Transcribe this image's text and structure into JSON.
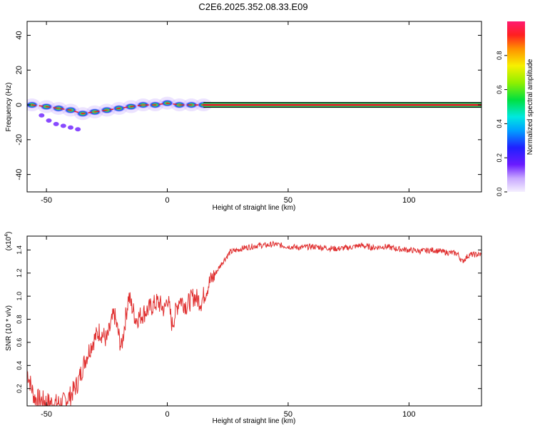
{
  "title": "C2E6.2025.352.08.33.E09",
  "colors": {
    "snr_line": "#e03030",
    "band_core": "#e8202a",
    "band_mid": "#10d060",
    "band_outer": "#000000"
  },
  "chart_data": [
    {
      "type": "heatmap",
      "name": "spectrogram",
      "xlabel": "Height of straight line (km)",
      "ylabel": "Frequency (Hz)",
      "xlim": [
        -58,
        130
      ],
      "ylim": [
        -50,
        48
      ],
      "xticks": [
        -50,
        0,
        50,
        100
      ],
      "yticks": [
        -40,
        -20,
        0,
        20,
        40
      ],
      "xtick_labels": [
        "-50",
        "0",
        "50",
        "100"
      ],
      "ytick_labels": [
        "-40",
        "-20",
        "0",
        "20",
        "40"
      ],
      "ridge": [
        {
          "x": -56,
          "f": 0
        },
        {
          "x": -50,
          "f": -1
        },
        {
          "x": -45,
          "f": -2
        },
        {
          "x": -40,
          "f": -3
        },
        {
          "x": -35,
          "f": -5
        },
        {
          "x": -30,
          "f": -4
        },
        {
          "x": -25,
          "f": -3
        },
        {
          "x": -20,
          "f": -2
        },
        {
          "x": -15,
          "f": -1
        },
        {
          "x": -10,
          "f": 0
        },
        {
          "x": -5,
          "f": 0
        },
        {
          "x": 0,
          "f": 1
        },
        {
          "x": 5,
          "f": 0
        },
        {
          "x": 10,
          "f": 0
        },
        {
          "x": 15,
          "f": 0
        }
      ],
      "tail": [
        {
          "x": -52,
          "f": -6
        },
        {
          "x": -49,
          "f": -9
        },
        {
          "x": -46,
          "f": -11
        },
        {
          "x": -43,
          "f": -12
        },
        {
          "x": -40,
          "f": -13
        },
        {
          "x": -37,
          "f": -14
        }
      ],
      "band": {
        "x_start": 15,
        "x_end": 130,
        "f": 0
      }
    },
    {
      "type": "colorbar",
      "name": "colorbar",
      "label": "Normalized spectral amplitude",
      "range": [
        0.0,
        1.0
      ],
      "ticks": [
        0.0,
        0.2,
        0.4,
        0.6,
        0.8
      ],
      "tick_labels": [
        "0.0",
        "0.2",
        "0.4",
        "0.6",
        "0.8"
      ]
    },
    {
      "type": "line",
      "name": "snr",
      "xlabel": "Height of straight line (km)",
      "ylabel": "SNR (10 * v/v)",
      "y_exponent_label": "(x10",
      "y_exponent_power": "4",
      "y_exponent_close": ")",
      "xlim": [
        -58,
        130
      ],
      "ylim": [
        0.05,
        1.52
      ],
      "xticks": [
        -50,
        0,
        50,
        100
      ],
      "xtick_labels": [
        "-50",
        "0",
        "50",
        "100"
      ],
      "yticks": [
        0.2,
        0.4,
        0.6,
        0.8,
        1.0,
        1.2,
        1.4
      ],
      "ytick_labels": [
        "0.2",
        "0.4",
        "0.6",
        "0.8",
        "1.0",
        "1.2",
        "1.4"
      ],
      "x": [
        -58,
        -55,
        -52,
        -49,
        -46,
        -43,
        -40,
        -37,
        -34,
        -31,
        -28,
        -25,
        -22,
        -19,
        -16,
        -13,
        -10,
        -7,
        -4,
        -1,
        0,
        2,
        5,
        8,
        11,
        14,
        17,
        20,
        23,
        26,
        29,
        32,
        35,
        38,
        41,
        44,
        47,
        50,
        55,
        60,
        65,
        70,
        75,
        80,
        85,
        90,
        95,
        100,
        105,
        110,
        115,
        120,
        122,
        125,
        130
      ],
      "y": [
        0.35,
        0.12,
        0.1,
        0.08,
        0.07,
        0.08,
        0.14,
        0.25,
        0.45,
        0.6,
        0.7,
        0.62,
        0.85,
        0.55,
        1.0,
        0.8,
        0.85,
        0.9,
        0.95,
        0.88,
        1.0,
        0.75,
        0.98,
        0.92,
        1.0,
        0.95,
        1.1,
        1.2,
        1.3,
        1.38,
        1.4,
        1.42,
        1.43,
        1.44,
        1.44,
        1.45,
        1.44,
        1.43,
        1.42,
        1.43,
        1.42,
        1.41,
        1.42,
        1.44,
        1.42,
        1.43,
        1.41,
        1.4,
        1.39,
        1.4,
        1.38,
        1.37,
        1.3,
        1.36,
        1.36
      ]
    }
  ]
}
